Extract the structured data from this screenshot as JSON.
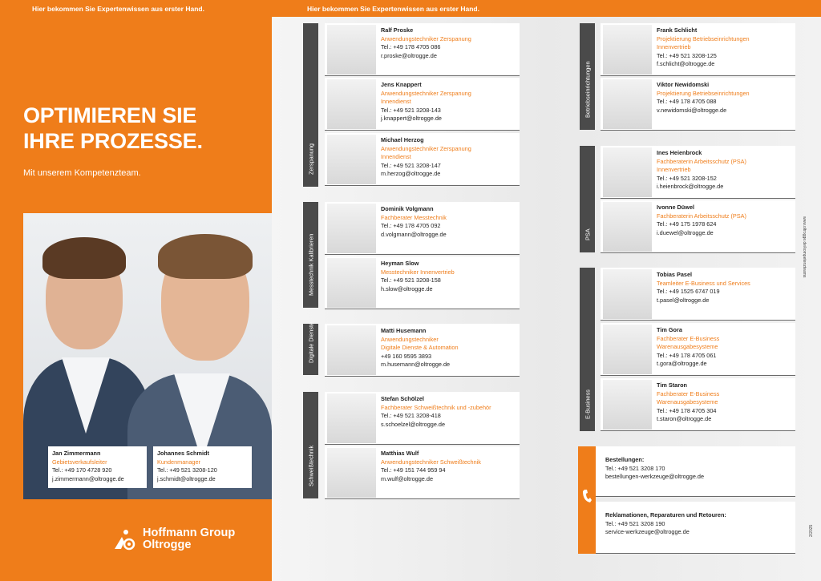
{
  "header": {
    "tagline_left": "Hier bekommen Sie Expertenwissen aus erster Hand.",
    "tagline_right": "Hier bekommen Sie Expertenwissen aus erster Hand."
  },
  "left": {
    "headline_line1": "OPTIMIEREN SIE",
    "headline_line2": "IHRE PROZESSE.",
    "subline": "Mit unserem Kompetenzteam.",
    "people": [
      {
        "name": "Jan Zimmermann",
        "role": "Gebietsverkaufsleiter",
        "tel": "Tel.: +49 170 4728 920",
        "email": "j.zimmermann@oltrogge.de"
      },
      {
        "name": "Johannes Schmidt",
        "role": "Kundenmanager",
        "tel": "Tel.: +49 521 3208-120",
        "email": "j.schmidt@oltrogge.de"
      }
    ],
    "logo_line1": "Hoffmann Group",
    "logo_line2": "Oltrogge"
  },
  "groups": {
    "zerspanung": "Zerspanung",
    "messtechnik": "Messtechnik Kalibrieren",
    "digital": "Digitale Dienste",
    "schweiss": "Schweißtechnik",
    "betrieb": "Betriebseinrichtungen",
    "psa": "PSA",
    "ebusiness": "E-Business"
  },
  "contacts": [
    {
      "name": "Ralf Proske",
      "role1": "Anwendungstechniker Zerspanung",
      "role2": "",
      "tel": "Tel.: +49 178 4705 086",
      "email": "r.proske@oltrogge.de"
    },
    {
      "name": "Jens Knappert",
      "role1": "Anwendungstechniker Zerspanung",
      "role2": "Innendienst",
      "tel": "Tel.: +49 521 3208-143",
      "email": "j.knappert@oltrogge.de"
    },
    {
      "name": "Michael Herzog",
      "role1": "Anwendungstechniker Zerspanung",
      "role2": "Innendienst",
      "tel": "Tel.: +49 521 3208-147",
      "email": "m.herzog@oltrogge.de"
    },
    {
      "name": "Dominik Volgmann",
      "role1": "Fachberater Messtechnik",
      "role2": "",
      "tel": "Tel.: +49 178 4705 092",
      "email": "d.volgmann@oltrogge.de"
    },
    {
      "name": "Heyman Slow",
      "role1": "Messtechniker Innenvertrieb",
      "role2": "",
      "tel": "Tel.: +49 521 3208-158",
      "email": "h.slow@oltrogge.de"
    },
    {
      "name": "Matti Husemann",
      "role1": "Anwendungstechniker",
      "role2": "Digitale Dienste & Automation",
      "tel": "+49 160 9595 3893",
      "email": "m.husemann@oltrogge.de"
    },
    {
      "name": "Stefan Schölzel",
      "role1": "Fachberater Schweißtechnik und -zubehör",
      "role2": "",
      "tel": "Tel.: +49 521 3208-418",
      "email": "s.schoelzel@oltrogge.de"
    },
    {
      "name": "Matthias Wulf",
      "role1": "Anwendungstechniker Schweißtechnik",
      "role2": "",
      "tel": "Tel.: +49 151 744 959 94",
      "email": "m.wulf@oltrogge.de"
    },
    {
      "name": "Frank Schlicht",
      "role1": "Projektierung Betriebseinrichtungen",
      "role2": "Innenvertrieb",
      "tel": "Tel.: +49 521 3208-125",
      "email": "f.schlicht@oltrogge.de"
    },
    {
      "name": "Viktor Newidomski",
      "role1": "Projektierung Betriebseinrichtungen",
      "role2": "",
      "tel": "Tel.: +49 178 4705 088",
      "email": "v.newidomski@oltrogge.de"
    },
    {
      "name": "Ines Heienbrock",
      "role1": "Fachberaterin Arbeitsschutz (PSA)",
      "role2": "Innenvertrieb",
      "tel": "Tel.: +49 521 3208-152",
      "email": "i.heienbrock@oltrogge.de"
    },
    {
      "name": "Ivonne Düwel",
      "role1": "Fachberaterin Arbeitsschutz (PSA)",
      "role2": "",
      "tel": "Tel.: +49 175 1978 624",
      "email": "i.duewel@oltrogge.de"
    },
    {
      "name": "Tobias Pasel",
      "role1": "Teamleiter E-Business und Services",
      "role2": "",
      "tel": "Tel.: +49 1525 6747 019",
      "email": "t.pasel@oltrogge.de"
    },
    {
      "name": "Tim Gora",
      "role1": "Fachberater E-Business",
      "role2": "Warenausgabesysteme",
      "tel": "Tel.: +49 178 4705 061",
      "email": "t.gora@oltrogge.de"
    },
    {
      "name": "Tim Staron",
      "role1": "Fachberater E-Business",
      "role2": "Warenausgabesysteme",
      "tel": "Tel.: +49 178 4705 304",
      "email": "t.staron@oltrogge.de"
    }
  ],
  "orders": {
    "title": "Bestellungen:",
    "tel": "Tel.: +49 521 3208 170",
    "email": "bestellungen-werkzeuge@oltrogge.de"
  },
  "service": {
    "title": "Reklamationen, Reparaturen und Retouren:",
    "tel": "Tel.: +49 521 3208 190",
    "email": "service-werkzeuge@oltrogge.de"
  },
  "side_url": "www.oltrogge.de/kompetenzteams",
  "side_year": "2/2025",
  "colors": {
    "accent": "#ef7d1a",
    "dark": "#4a4a4a"
  }
}
